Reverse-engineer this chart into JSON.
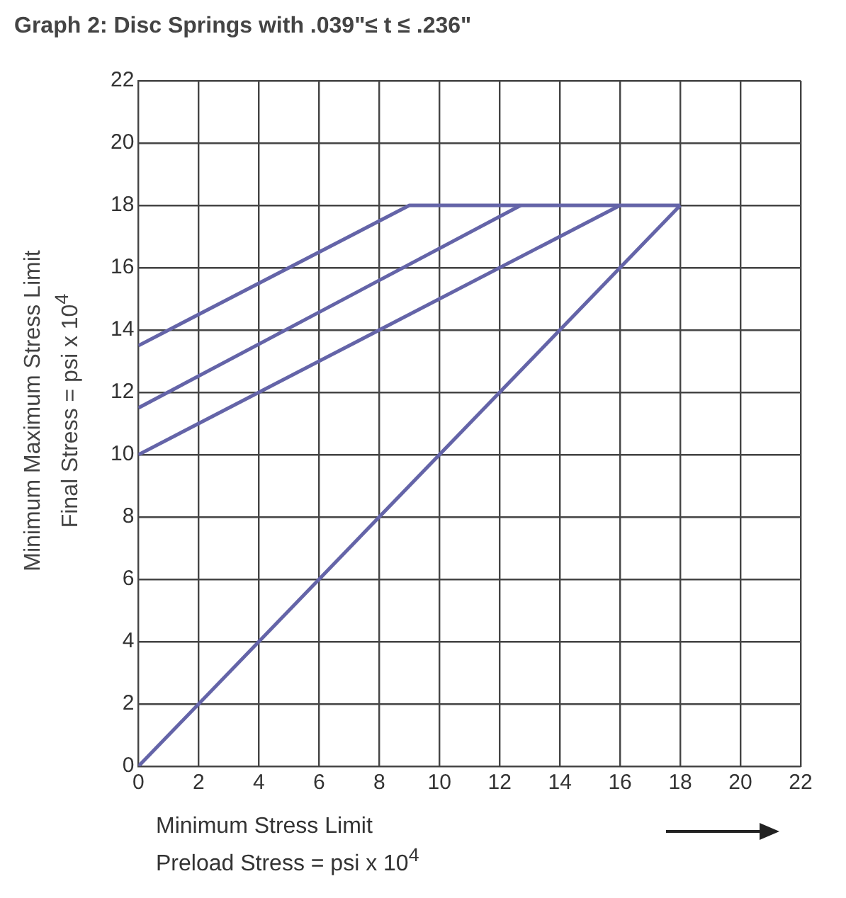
{
  "chart_data": {
    "type": "line",
    "title": "Graph 2: Disc Springs with .039\"≤ t ≤ .236\"",
    "xlabel": "Minimum Stress Limit\nPreload Stress = psi x 10$^{4}$",
    "ylabel": "Minimum Maximum Stress Limit\nFinal  Stress = psi x 10$^{4}$",
    "series": [
      {
        "color": "#6464a8",
        "x": [
          0,
          9,
          18
        ],
        "values": [
          13.5,
          18,
          18
        ]
      },
      {
        "color": "#6464a8",
        "x": [
          0,
          12.7
        ],
        "values": [
          11.5,
          18
        ]
      },
      {
        "color": "#6464a8",
        "x": [
          0,
          16
        ],
        "values": [
          10,
          18
        ]
      },
      {
        "color": "#6464a8",
        "x": [
          0,
          18
        ],
        "values": [
          0,
          18
        ]
      }
    ],
    "xlim": [
      0,
      22
    ],
    "ylim": [
      0,
      22
    ],
    "xticks": [
      0,
      2,
      4,
      6,
      8,
      10,
      12,
      14,
      16,
      18,
      20,
      22
    ],
    "yticks": [
      0,
      2,
      4,
      6,
      8,
      10,
      12,
      14,
      16,
      18,
      20,
      22
    ],
    "grid": true,
    "legend": false,
    "marker": "none",
    "line_style": "solid"
  }
}
